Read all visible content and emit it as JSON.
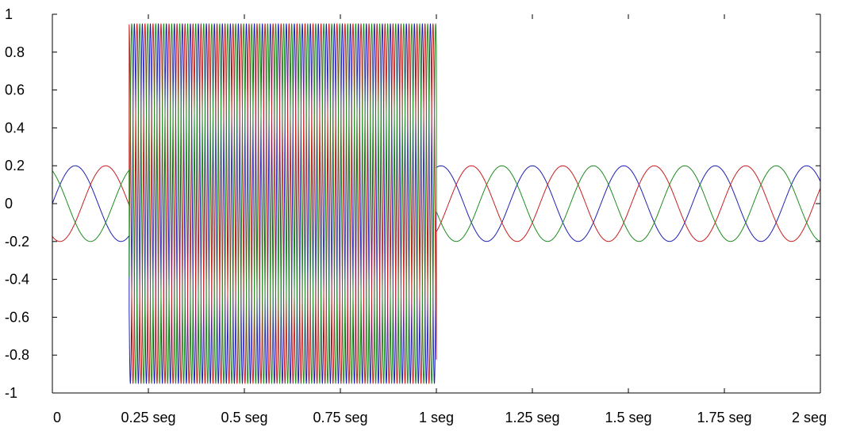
{
  "chart_data": {
    "type": "line",
    "title": "",
    "xlabel": "",
    "ylabel": "",
    "xlim": [
      0,
      2
    ],
    "ylim": [
      -1,
      1
    ],
    "grid": false,
    "legend": "none",
    "x_ticks": [
      {
        "value": 0,
        "label": "0"
      },
      {
        "value": 0.25,
        "label": "0.25 seg"
      },
      {
        "value": 0.5,
        "label": "0.5 seg"
      },
      {
        "value": 0.75,
        "label": "0.75 seg"
      },
      {
        "value": 1,
        "label": "1 seg"
      },
      {
        "value": 1.25,
        "label": "1.25 seg"
      },
      {
        "value": 1.5,
        "label": "1.5 seg"
      },
      {
        "value": 1.75,
        "label": "1.75 seg"
      },
      {
        "value": 2,
        "label": "2 seg"
      }
    ],
    "y_ticks": [
      {
        "value": 1,
        "label": "1"
      },
      {
        "value": 0.8,
        "label": "0.8"
      },
      {
        "value": 0.6,
        "label": "0.6"
      },
      {
        "value": 0.4,
        "label": "0.4"
      },
      {
        "value": 0.2,
        "label": "0.2"
      },
      {
        "value": 0,
        "label": "0"
      },
      {
        "value": -0.2,
        "label": "-0.2"
      },
      {
        "value": -0.4,
        "label": "-0.4"
      },
      {
        "value": -0.6,
        "label": "-0.6"
      },
      {
        "value": -0.8,
        "label": "-0.8"
      },
      {
        "value": -1,
        "label": "-1"
      }
    ],
    "series": [
      {
        "color": "#1f1fb4",
        "phase_deg": 0,
        "segments": [
          {
            "t_start": -0.02,
            "t_end": 0.2,
            "amplitude": 0.2,
            "frequency": 4.2
          },
          {
            "t_start": 0.2,
            "t_end": 1.0,
            "amplitude": 0.95,
            "frequency": 48
          },
          {
            "t_start": 1.0,
            "t_end": 2.0,
            "amplitude": 0.2,
            "frequency": 4.2
          }
        ]
      },
      {
        "color": "#c81e1e",
        "phase_deg": -120,
        "segments": [
          {
            "t_start": -0.02,
            "t_end": 0.2,
            "amplitude": 0.2,
            "frequency": 4.2
          },
          {
            "t_start": 0.2,
            "t_end": 1.0,
            "amplitude": 0.95,
            "frequency": 48
          },
          {
            "t_start": 1.0,
            "t_end": 2.0,
            "amplitude": 0.2,
            "frequency": 4.2
          }
        ]
      },
      {
        "color": "#1e8c1e",
        "phase_deg": 120,
        "segments": [
          {
            "t_start": -0.02,
            "t_end": 0.2,
            "amplitude": 0.2,
            "frequency": 4.2
          },
          {
            "t_start": 0.2,
            "t_end": 1.0,
            "amplitude": 0.95,
            "frequency": 48
          },
          {
            "t_start": 1.0,
            "t_end": 2.0,
            "amplitude": 0.2,
            "frequency": 4.2
          }
        ]
      }
    ]
  }
}
